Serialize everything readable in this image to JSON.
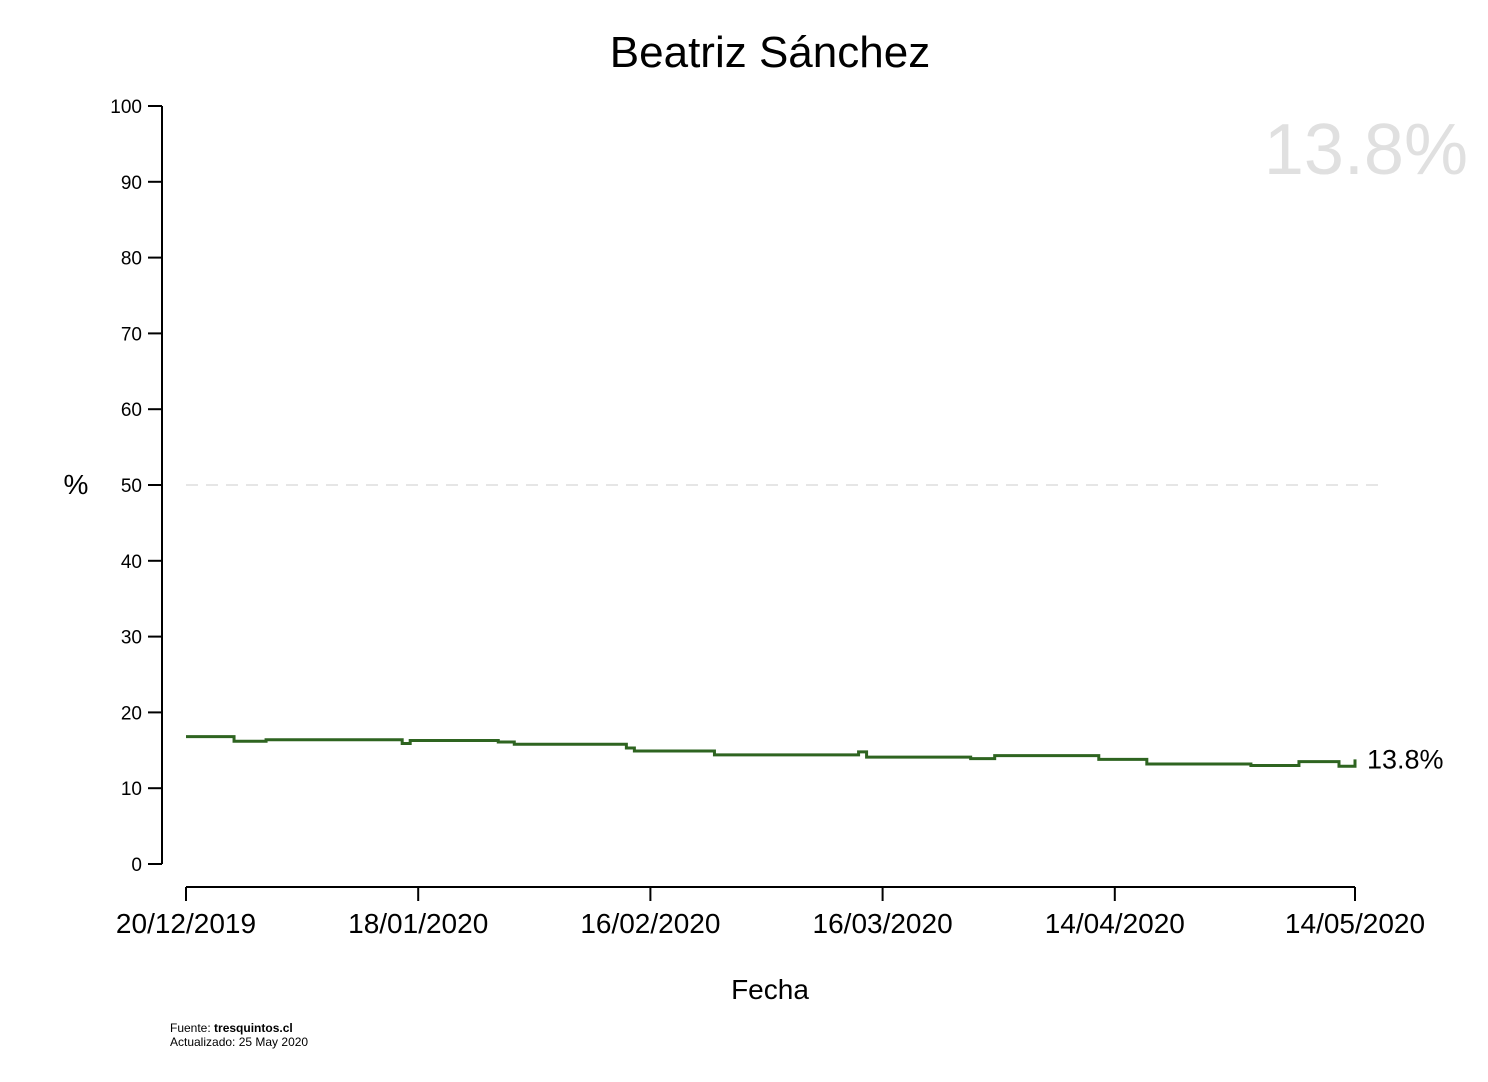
{
  "source": {
    "prefix": "Fuente:",
    "site": "tresquintos.cl",
    "updated": "Actualizado: 25 May 2020"
  },
  "chart_data": {
    "type": "line",
    "step": true,
    "title": "Beatriz Sánchez",
    "xlabel": "Fecha",
    "ylabel": "%",
    "ylim": [
      0,
      100
    ],
    "yticks": [
      0,
      10,
      20,
      30,
      40,
      50,
      60,
      70,
      80,
      90,
      100
    ],
    "xlim": [
      "2019-12-20",
      "2020-05-14"
    ],
    "xticks": [
      {
        "date": "2019-12-20",
        "label": "20/12/2019"
      },
      {
        "date": "2020-01-18",
        "label": "18/01/2020"
      },
      {
        "date": "2020-02-16",
        "label": "16/02/2020"
      },
      {
        "date": "2020-03-16",
        "label": "16/03/2020"
      },
      {
        "date": "2020-04-14",
        "label": "14/04/2020"
      },
      {
        "date": "2020-05-14",
        "label": "14/05/2020"
      }
    ],
    "reference_line": {
      "y": 50,
      "style": "dashed",
      "color": "#cccccc"
    },
    "grid": false,
    "line_color": "#2e6420",
    "highlight_value": "13.8%",
    "end_label": "13.8%",
    "series": [
      {
        "x": [
          "2019-12-20",
          "2019-12-26",
          "2019-12-30",
          "2020-01-09",
          "2020-01-16",
          "2020-01-17",
          "2020-01-28",
          "2020-01-30",
          "2020-02-13",
          "2020-02-14",
          "2020-02-24",
          "2020-03-13",
          "2020-03-14",
          "2020-03-27",
          "2020-03-30",
          "2020-04-12",
          "2020-04-18",
          "2020-05-01",
          "2020-05-07",
          "2020-05-12",
          "2020-05-14"
        ],
        "y": [
          16.8,
          16.2,
          16.4,
          16.4,
          15.9,
          16.3,
          16.1,
          15.8,
          15.3,
          14.9,
          14.4,
          14.8,
          14.1,
          13.9,
          14.3,
          13.8,
          13.2,
          13.0,
          13.5,
          12.9,
          13.8
        ]
      }
    ]
  }
}
